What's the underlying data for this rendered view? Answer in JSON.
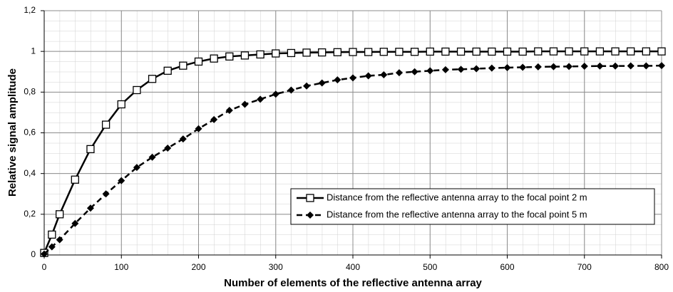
{
  "chart_data": {
    "type": "line",
    "xlabel": "Number of elements of the reflective antenna array",
    "ylabel": "Relative signal amplitude",
    "x": [
      0,
      10,
      20,
      40,
      60,
      80,
      100,
      120,
      140,
      160,
      180,
      200,
      220,
      240,
      260,
      280,
      300,
      320,
      340,
      360,
      380,
      400,
      420,
      440,
      460,
      480,
      500,
      520,
      540,
      560,
      580,
      600,
      620,
      640,
      660,
      680,
      700,
      720,
      740,
      760,
      780,
      800
    ],
    "series": [
      {
        "name": "Distance from the reflective antenna array to the focal point 2 m",
        "color": "#000000",
        "line_style": "solid",
        "marker": "square",
        "values": [
          0.01,
          0.1,
          0.2,
          0.37,
          0.52,
          0.64,
          0.74,
          0.81,
          0.865,
          0.905,
          0.93,
          0.95,
          0.965,
          0.975,
          0.98,
          0.985,
          0.99,
          0.992,
          0.994,
          0.995,
          0.996,
          0.997,
          0.997,
          0.998,
          0.998,
          0.998,
          0.999,
          0.999,
          0.999,
          0.999,
          0.999,
          0.999,
          0.999,
          1,
          1,
          1,
          1,
          1,
          1,
          1,
          1,
          1
        ]
      },
      {
        "name": "Distance from the reflective antenna array to the focal point 5 m",
        "color": "#000000",
        "line_style": "dashed",
        "marker": "diamond",
        "values": [
          0.005,
          0.04,
          0.075,
          0.155,
          0.23,
          0.3,
          0.365,
          0.43,
          0.48,
          0.525,
          0.57,
          0.62,
          0.665,
          0.71,
          0.74,
          0.765,
          0.79,
          0.81,
          0.83,
          0.845,
          0.86,
          0.87,
          0.88,
          0.885,
          0.895,
          0.9,
          0.905,
          0.91,
          0.912,
          0.915,
          0.918,
          0.92,
          0.922,
          0.924,
          0.925,
          0.926,
          0.927,
          0.928,
          0.928,
          0.929,
          0.929,
          0.93
        ]
      }
    ],
    "xlim": [
      0,
      800
    ],
    "xticks": [
      0,
      100,
      200,
      300,
      400,
      500,
      600,
      700,
      800
    ],
    "ylim": [
      0,
      1.2
    ],
    "yticks": [
      0,
      {
        "value": 0.2,
        "label": "0,2"
      },
      {
        "value": 0.4,
        "label": "0,4"
      },
      {
        "value": 0.6,
        "label": "0,6"
      },
      {
        "value": 0.8,
        "label": "0,8"
      },
      1,
      {
        "value": 1.2,
        "label": "1,2"
      }
    ],
    "grid": true,
    "legend": "lower right"
  }
}
